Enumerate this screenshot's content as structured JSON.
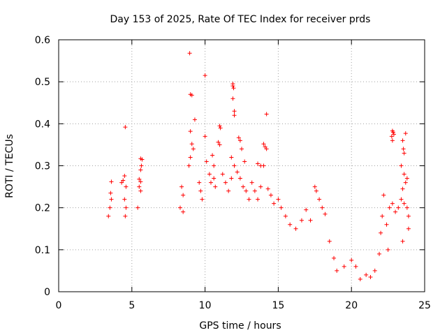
{
  "chart_data": {
    "type": "scatter",
    "title": "Day 153 of 2025, Rate Of TEC Index for receiver prds",
    "xlabel": "GPS time / hours",
    "ylabel": "ROTI / TECUs",
    "xlim": [
      0,
      25
    ],
    "ylim": [
      0,
      0.6
    ],
    "x_ticks": [
      "0",
      "5",
      "10",
      "15",
      "20",
      "25"
    ],
    "y_ticks": [
      "0",
      "0.1",
      "0.2",
      "0.3",
      "0.4",
      "0.5",
      "0.6"
    ],
    "grid": true,
    "marker": "+",
    "color": "#ff0000",
    "series": [
      {
        "values": [
          [
            8.95,
            0.568
          ],
          [
            10.0,
            0.515
          ],
          [
            9.0,
            0.47
          ],
          [
            9.1,
            0.468
          ],
          [
            11.9,
            0.495
          ],
          [
            11.9,
            0.49
          ],
          [
            11.95,
            0.485
          ],
          [
            11.9,
            0.46
          ],
          [
            12.0,
            0.43
          ],
          [
            12.0,
            0.42
          ],
          [
            14.2,
            0.423
          ],
          [
            9.3,
            0.41
          ],
          [
            4.55,
            0.392
          ],
          [
            11.0,
            0.395
          ],
          [
            11.05,
            0.39
          ],
          [
            10.0,
            0.37
          ],
          [
            9.0,
            0.382
          ],
          [
            22.8,
            0.383
          ],
          [
            22.85,
            0.38
          ],
          [
            22.9,
            0.375
          ],
          [
            23.7,
            0.377
          ],
          [
            22.75,
            0.37
          ],
          [
            22.8,
            0.36
          ],
          [
            12.3,
            0.367
          ],
          [
            12.4,
            0.36
          ],
          [
            9.1,
            0.352
          ],
          [
            10.9,
            0.356
          ],
          [
            11.0,
            0.35
          ],
          [
            14.0,
            0.352
          ],
          [
            14.1,
            0.345
          ],
          [
            14.2,
            0.34
          ],
          [
            23.5,
            0.36
          ],
          [
            23.55,
            0.34
          ],
          [
            23.6,
            0.33
          ],
          [
            12.5,
            0.34
          ],
          [
            9.2,
            0.34
          ],
          [
            5.6,
            0.317
          ],
          [
            5.7,
            0.315
          ],
          [
            5.65,
            0.3
          ],
          [
            5.6,
            0.29
          ],
          [
            10.5,
            0.325
          ],
          [
            10.6,
            0.3
          ],
          [
            10.1,
            0.31
          ],
          [
            9.0,
            0.32
          ],
          [
            8.9,
            0.3
          ],
          [
            11.8,
            0.32
          ],
          [
            12.0,
            0.3
          ],
          [
            12.7,
            0.31
          ],
          [
            13.6,
            0.305
          ],
          [
            13.8,
            0.3
          ],
          [
            14.0,
            0.3
          ],
          [
            23.4,
            0.3
          ],
          [
            23.6,
            0.28
          ],
          [
            23.7,
            0.26
          ],
          [
            23.8,
            0.27
          ],
          [
            23.5,
            0.245
          ],
          [
            4.5,
            0.276
          ],
          [
            4.4,
            0.265
          ],
          [
            4.3,
            0.26
          ],
          [
            4.6,
            0.25
          ],
          [
            3.6,
            0.262
          ],
          [
            3.55,
            0.235
          ],
          [
            3.6,
            0.22
          ],
          [
            3.5,
            0.2
          ],
          [
            3.4,
            0.18
          ],
          [
            5.5,
            0.268
          ],
          [
            5.6,
            0.262
          ],
          [
            5.5,
            0.25
          ],
          [
            5.6,
            0.24
          ],
          [
            5.4,
            0.2
          ],
          [
            4.5,
            0.22
          ],
          [
            4.6,
            0.2
          ],
          [
            4.55,
            0.18
          ],
          [
            8.4,
            0.25
          ],
          [
            8.5,
            0.23
          ],
          [
            8.3,
            0.2
          ],
          [
            8.5,
            0.19
          ],
          [
            9.6,
            0.26
          ],
          [
            9.7,
            0.24
          ],
          [
            9.8,
            0.22
          ],
          [
            10.3,
            0.28
          ],
          [
            10.4,
            0.26
          ],
          [
            10.6,
            0.27
          ],
          [
            10.7,
            0.25
          ],
          [
            11.2,
            0.28
          ],
          [
            11.4,
            0.26
          ],
          [
            11.6,
            0.24
          ],
          [
            11.8,
            0.27
          ],
          [
            12.2,
            0.285
          ],
          [
            12.4,
            0.27
          ],
          [
            12.6,
            0.25
          ],
          [
            12.8,
            0.24
          ],
          [
            13.0,
            0.22
          ],
          [
            13.2,
            0.26
          ],
          [
            13.4,
            0.24
          ],
          [
            13.6,
            0.22
          ],
          [
            13.8,
            0.25
          ],
          [
            14.3,
            0.245
          ],
          [
            14.5,
            0.23
          ],
          [
            14.7,
            0.21
          ],
          [
            15.0,
            0.22
          ],
          [
            15.2,
            0.2
          ],
          [
            15.5,
            0.18
          ],
          [
            15.8,
            0.16
          ],
          [
            16.2,
            0.15
          ],
          [
            16.6,
            0.17
          ],
          [
            16.9,
            0.195
          ],
          [
            17.2,
            0.17
          ],
          [
            17.5,
            0.25
          ],
          [
            17.6,
            0.24
          ],
          [
            17.8,
            0.22
          ],
          [
            18.0,
            0.2
          ],
          [
            18.2,
            0.185
          ],
          [
            18.5,
            0.12
          ],
          [
            18.8,
            0.08
          ],
          [
            19.0,
            0.05
          ],
          [
            19.5,
            0.06
          ],
          [
            20.0,
            0.075
          ],
          [
            20.3,
            0.06
          ],
          [
            20.6,
            0.03
          ],
          [
            21.0,
            0.04
          ],
          [
            21.3,
            0.035
          ],
          [
            21.6,
            0.05
          ],
          [
            21.9,
            0.09
          ],
          [
            22.0,
            0.14
          ],
          [
            22.1,
            0.18
          ],
          [
            22.2,
            0.23
          ],
          [
            22.4,
            0.16
          ],
          [
            22.6,
            0.2
          ],
          [
            22.8,
            0.21
          ],
          [
            23.0,
            0.19
          ],
          [
            23.2,
            0.2
          ],
          [
            23.4,
            0.22
          ],
          [
            23.6,
            0.21
          ],
          [
            23.8,
            0.2
          ],
          [
            23.9,
            0.18
          ],
          [
            23.9,
            0.15
          ],
          [
            23.5,
            0.12
          ],
          [
            22.5,
            0.1
          ]
        ]
      }
    ]
  }
}
